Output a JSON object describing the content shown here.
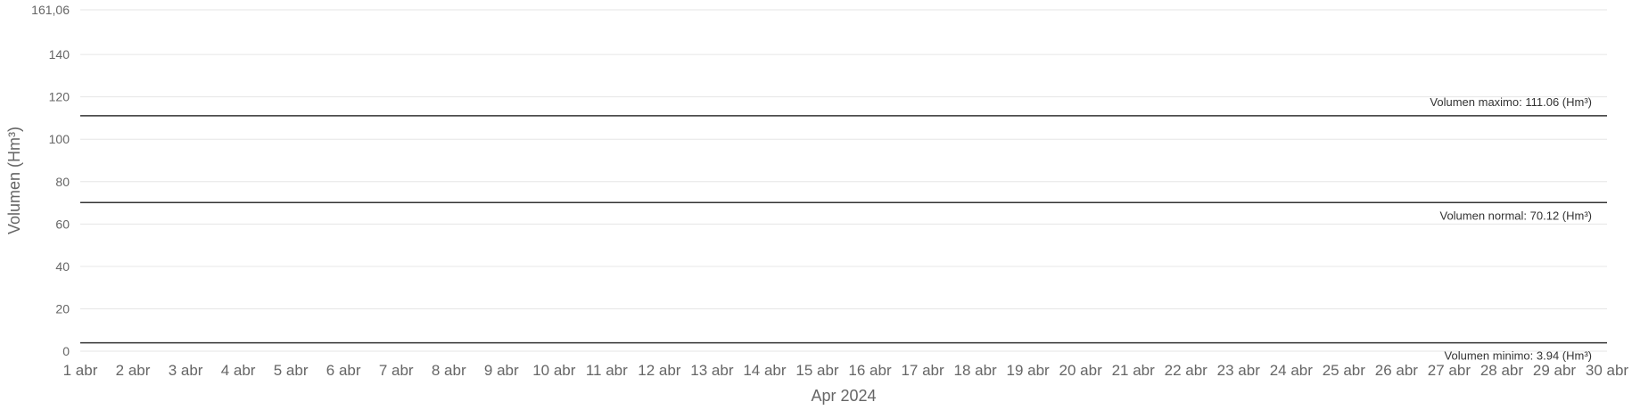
{
  "chart_data": {
    "type": "line",
    "xlabel": "Apr 2024",
    "ylabel": "Volumen (Hm³)",
    "ylim": [
      0,
      161.06
    ],
    "y_ticks": [
      {
        "value": 0,
        "label": "0"
      },
      {
        "value": 20,
        "label": "20"
      },
      {
        "value": 40,
        "label": "40"
      },
      {
        "value": 60,
        "label": "60"
      },
      {
        "value": 80,
        "label": "80"
      },
      {
        "value": 100,
        "label": "100"
      },
      {
        "value": 120,
        "label": "120"
      },
      {
        "value": 140,
        "label": "140"
      },
      {
        "value": 161.06,
        "label": "161,06"
      }
    ],
    "categories": [
      "1 abr",
      "2 abr",
      "3 abr",
      "4 abr",
      "5 abr",
      "6 abr",
      "7 abr",
      "8 abr",
      "9 abr",
      "10 abr",
      "11 abr",
      "12 abr",
      "13 abr",
      "14 abr",
      "15 abr",
      "16 abr",
      "17 abr",
      "18 abr",
      "19 abr",
      "20 abr",
      "21 abr",
      "22 abr",
      "23 abr",
      "24 abr",
      "25 abr",
      "26 abr",
      "27 abr",
      "28 abr",
      "29 abr",
      "30 abr"
    ],
    "grid": true,
    "reference_lines": [
      {
        "value": 111.06,
        "label": "Volumen maximo: 111.06 (Hm³)",
        "label_position": "above-right"
      },
      {
        "value": 70.12,
        "label": "Volumen normal: 70.12 (Hm³)",
        "label_position": "below-right"
      },
      {
        "value": 3.94,
        "label": "Volumen minimo: 3.94 (Hm³)",
        "label_position": "below-right"
      }
    ],
    "series": []
  }
}
